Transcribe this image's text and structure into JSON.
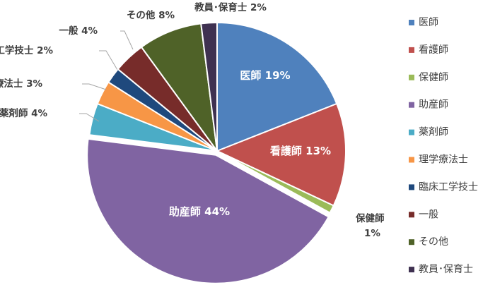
{
  "chart_data": {
    "type": "pie",
    "categories": [
      "医師",
      "看護師",
      "保健師",
      "助産師",
      "薬剤師",
      "理学療法士",
      "臨床工学技士",
      "一般",
      "その他",
      "教員･保育士"
    ],
    "values": [
      19,
      13,
      1,
      44,
      4,
      3,
      2,
      4,
      8,
      2
    ],
    "value_labels": [
      "19%",
      "13%",
      "1%",
      "44%",
      "4%",
      "3%",
      "2%",
      "4%",
      "8%",
      "2%"
    ],
    "colors": [
      "#4f81bd",
      "#c0504d",
      "#9bbb59",
      "#8064a2",
      "#4bacc6",
      "#f79646",
      "#1f497d",
      "#772c2a",
      "#4f6228",
      "#3f3151"
    ],
    "legend": "right"
  }
}
